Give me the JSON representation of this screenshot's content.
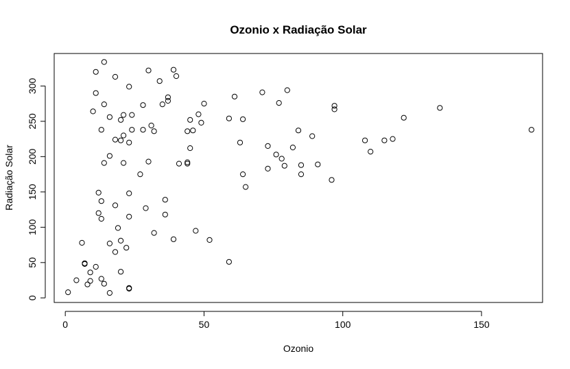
{
  "chart_data": {
    "type": "scatter",
    "title": "Ozonio x Radiação Solar",
    "xlabel": "Ozonio",
    "ylabel": "Radiação Solar",
    "xlim": [
      -4,
      172
    ],
    "ylim": [
      -6.5,
      346
    ],
    "xticks": [
      "0",
      "50",
      "100",
      "150"
    ],
    "yticks": [
      "0",
      "50",
      "100",
      "150",
      "200",
      "250",
      "300"
    ],
    "grid": false,
    "marker": "open-circle",
    "color": "#000000",
    "points": [
      [
        1,
        8
      ],
      [
        4,
        25
      ],
      [
        6,
        78
      ],
      [
        7,
        49
      ],
      [
        7,
        48
      ],
      [
        8,
        19
      ],
      [
        9,
        24
      ],
      [
        9,
        36
      ],
      [
        10,
        264
      ],
      [
        11,
        320
      ],
      [
        11,
        290
      ],
      [
        11,
        44
      ],
      [
        12,
        149
      ],
      [
        12,
        120
      ],
      [
        13,
        137
      ],
      [
        13,
        112
      ],
      [
        13,
        27
      ],
      [
        13,
        238
      ],
      [
        14,
        274
      ],
      [
        14,
        334
      ],
      [
        14,
        20
      ],
      [
        14,
        191
      ],
      [
        16,
        77
      ],
      [
        16,
        201
      ],
      [
        16,
        7
      ],
      [
        16,
        256
      ],
      [
        18,
        313
      ],
      [
        18,
        224
      ],
      [
        18,
        131
      ],
      [
        18,
        65
      ],
      [
        19,
        99
      ],
      [
        20,
        252
      ],
      [
        20,
        223
      ],
      [
        20,
        81
      ],
      [
        20,
        37
      ],
      [
        21,
        259
      ],
      [
        21,
        230
      ],
      [
        21,
        191
      ],
      [
        22,
        71
      ],
      [
        23,
        299
      ],
      [
        23,
        220
      ],
      [
        23,
        148
      ],
      [
        23,
        115
      ],
      [
        23,
        14
      ],
      [
        23,
        13
      ],
      [
        24,
        259
      ],
      [
        24,
        238
      ],
      [
        27,
        175
      ],
      [
        28,
        273
      ],
      [
        28,
        238
      ],
      [
        29,
        127
      ],
      [
        30,
        322
      ],
      [
        30,
        193
      ],
      [
        31,
        244
      ],
      [
        32,
        236
      ],
      [
        32,
        92
      ],
      [
        34,
        307
      ],
      [
        35,
        274
      ],
      [
        36,
        139
      ],
      [
        36,
        118
      ],
      [
        37,
        284
      ],
      [
        37,
        279
      ],
      [
        39,
        323
      ],
      [
        39,
        83
      ],
      [
        40,
        314
      ],
      [
        41,
        190
      ],
      [
        44,
        236
      ],
      [
        44,
        192
      ],
      [
        44,
        190
      ],
      [
        45,
        252
      ],
      [
        45,
        212
      ],
      [
        46,
        237
      ],
      [
        47,
        95
      ],
      [
        48,
        260
      ],
      [
        49,
        248
      ],
      [
        50,
        275
      ],
      [
        52,
        82
      ],
      [
        59,
        254
      ],
      [
        59,
        51
      ],
      [
        61,
        285
      ],
      [
        63,
        220
      ],
      [
        64,
        253
      ],
      [
        64,
        175
      ],
      [
        65,
        157
      ],
      [
        71,
        291
      ],
      [
        73,
        215
      ],
      [
        73,
        183
      ],
      [
        76,
        203
      ],
      [
        77,
        276
      ],
      [
        78,
        197
      ],
      [
        79,
        187
      ],
      [
        80,
        294
      ],
      [
        82,
        213
      ],
      [
        84,
        237
      ],
      [
        85,
        188
      ],
      [
        85,
        175
      ],
      [
        89,
        229
      ],
      [
        91,
        189
      ],
      [
        96,
        167
      ],
      [
        97,
        272
      ],
      [
        97,
        267
      ],
      [
        108,
        223
      ],
      [
        110,
        207
      ],
      [
        115,
        223
      ],
      [
        118,
        225
      ],
      [
        122,
        255
      ],
      [
        135,
        269
      ],
      [
        168,
        238
      ]
    ]
  }
}
